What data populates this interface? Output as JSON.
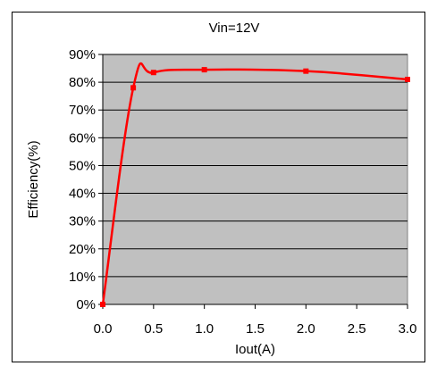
{
  "chart_data": {
    "type": "line",
    "title": "Vin=12V",
    "xlabel": "Iout(A)",
    "ylabel": "Efficiency(%)",
    "xlim": [
      0.0,
      3.0
    ],
    "ylim": [
      0,
      90
    ],
    "x_ticks": [
      "0.0",
      "0.5",
      "1.0",
      "1.5",
      "2.0",
      "2.5",
      "3.0"
    ],
    "y_ticks": [
      "0%",
      "10%",
      "20%",
      "30%",
      "40%",
      "50%",
      "60%",
      "70%",
      "80%",
      "90%"
    ],
    "grid": true,
    "legend": "none",
    "plot_background": "#c0c0c0",
    "series_color": "#ff0000",
    "series": [
      {
        "x": [
          0.0,
          0.3,
          0.5,
          1.0,
          2.0,
          3.0
        ],
        "y": [
          0,
          78,
          83.5,
          84.5,
          84,
          81
        ]
      }
    ]
  }
}
